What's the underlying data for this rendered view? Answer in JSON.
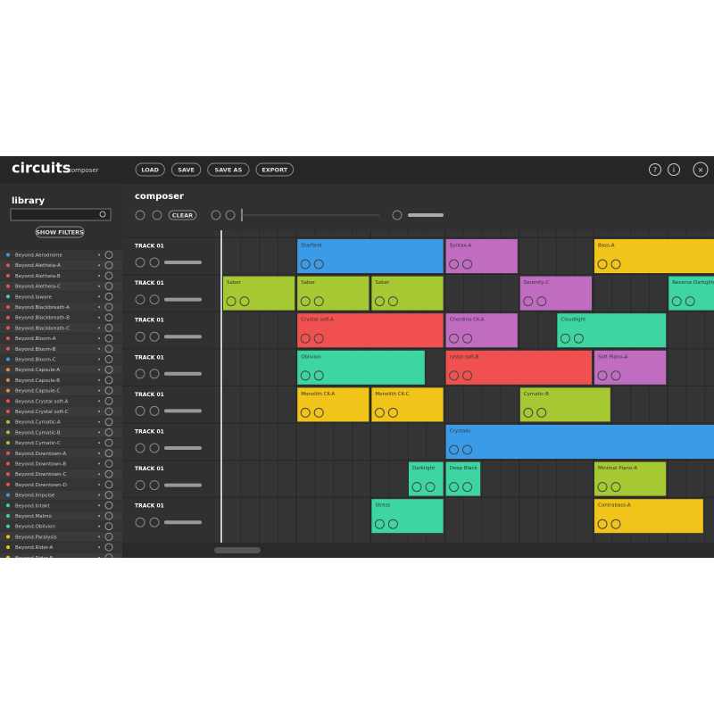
{
  "header": {
    "logo": "circuits",
    "subtitle": "composer",
    "buttons": [
      "LOAD",
      "SAVE",
      "SAVE AS",
      "EXPORT"
    ],
    "icons": [
      "?",
      "i",
      "×"
    ]
  },
  "library": {
    "title": "library",
    "filter_button": "SHOW FILTERS",
    "items": [
      {
        "name": "Beyond.Aerodrome",
        "color": "#3a9be8"
      },
      {
        "name": "Beyond.Aletheia-A",
        "color": "#f05050"
      },
      {
        "name": "Beyond.Aletheia-B",
        "color": "#f05050"
      },
      {
        "name": "Beyond.Aletheia-C",
        "color": "#f05050"
      },
      {
        "name": "Beyond.Iaware",
        "color": "#3dd6a0"
      },
      {
        "name": "Beyond.Blackbreath-A",
        "color": "#f05050"
      },
      {
        "name": "Beyond.Blackbreath-B",
        "color": "#f05050"
      },
      {
        "name": "Beyond.Blackbreath-C",
        "color": "#f05050"
      },
      {
        "name": "Beyond.Bloom-A",
        "color": "#f05050"
      },
      {
        "name": "Beyond.Bloom-B",
        "color": "#f05050"
      },
      {
        "name": "Beyond.Bloom-C",
        "color": "#3a9be8"
      },
      {
        "name": "Beyond.Capsule-A",
        "color": "#f08a3a"
      },
      {
        "name": "Beyond.Capsule-B",
        "color": "#f08a3a"
      },
      {
        "name": "Beyond.Capsule-C",
        "color": "#f08a3a"
      },
      {
        "name": "Beyond.Crystal soft-A",
        "color": "#f05050"
      },
      {
        "name": "Beyond.Crystal soft-C",
        "color": "#f05050"
      },
      {
        "name": "Beyond.Cymatic-A",
        "color": "#a6c832"
      },
      {
        "name": "Beyond.Cymatic-B",
        "color": "#a6c832"
      },
      {
        "name": "Beyond.Cymatic-C",
        "color": "#a6c832"
      },
      {
        "name": "Beyond.Downtown-A",
        "color": "#f05050"
      },
      {
        "name": "Beyond.Downtown-B",
        "color": "#f05050"
      },
      {
        "name": "Beyond.Downtown-C",
        "color": "#f05050"
      },
      {
        "name": "Beyond.Downtown-D",
        "color": "#f05050"
      },
      {
        "name": "Beyond.Impulse",
        "color": "#3a9be8"
      },
      {
        "name": "Beyond.Intakt",
        "color": "#3dd6a0"
      },
      {
        "name": "Beyond.Malmo",
        "color": "#3dd6a0"
      },
      {
        "name": "Beyond.Oblivion",
        "color": "#3dd6a0"
      },
      {
        "name": "Beyond.Paralysis",
        "color": "#f0c419"
      },
      {
        "name": "Beyond.Rider-A",
        "color": "#f0c419"
      },
      {
        "name": "Beyond.Rider-B",
        "color": "#f0c419"
      }
    ]
  },
  "composer": {
    "title": "composer",
    "clear_button": "CLEAR",
    "tracks": [
      {
        "name": "TRACK 01",
        "clips": [
          {
            "name": "Starfield",
            "color": "#3a9be8",
            "start": 4,
            "length": 8
          },
          {
            "name": "Syntax-A",
            "color": "#c06cc0",
            "start": 12,
            "length": 4
          },
          {
            "name": "Bass-A",
            "color": "#f0c419",
            "start": 20,
            "length": 8
          }
        ]
      },
      {
        "name": "TRACK 01",
        "clips": [
          {
            "name": "Saber",
            "color": "#a6c832",
            "start": 0,
            "length": 4
          },
          {
            "name": "Saber",
            "color": "#a6c832",
            "start": 4,
            "length": 4
          },
          {
            "name": "Saber",
            "color": "#a6c832",
            "start": 8,
            "length": 4
          },
          {
            "name": "Serenity-C",
            "color": "#c06cc0",
            "start": 16,
            "length": 4
          },
          {
            "name": "Reverse Darkglitch",
            "color": "#3dd6a0",
            "start": 24,
            "length": 4
          }
        ]
      },
      {
        "name": "TRACK 01",
        "clips": [
          {
            "name": "Crystal soft-A",
            "color": "#f05050",
            "start": 4,
            "length": 8
          },
          {
            "name": "Chordino CK-A",
            "color": "#c06cc0",
            "start": 12,
            "length": 4
          },
          {
            "name": "Cloudlight",
            "color": "#3dd6a0",
            "start": 18,
            "length": 6
          }
        ]
      },
      {
        "name": "TRACK 01",
        "clips": [
          {
            "name": "Oblivion",
            "color": "#3dd6a0",
            "start": 4,
            "length": 7
          },
          {
            "name": "rystal soft-B",
            "color": "#f05050",
            "start": 12,
            "length": 8
          },
          {
            "name": "Soft Piano-A",
            "color": "#c06cc0",
            "start": 20,
            "length": 4
          }
        ]
      },
      {
        "name": "TRACK 01",
        "clips": [
          {
            "name": "Monolith CK-A",
            "color": "#f0c419",
            "start": 4,
            "length": 4
          },
          {
            "name": "Monolith CK-C",
            "color": "#f0c419",
            "start": 8,
            "length": 4
          },
          {
            "name": "Cymatic-B",
            "color": "#a6c832",
            "start": 16,
            "length": 5
          }
        ]
      },
      {
        "name": "TRACK 01",
        "clips": [
          {
            "name": "Crystalis",
            "color": "#3a9be8",
            "start": 12,
            "length": 16
          }
        ]
      },
      {
        "name": "TRACK 01",
        "clips": [
          {
            "name": "Darklight",
            "color": "#3dd6a0",
            "start": 10,
            "length": 2
          },
          {
            "name": "Deep Black",
            "color": "#3dd6a0",
            "start": 12,
            "length": 2
          },
          {
            "name": "Minimal Piano-A",
            "color": "#a6c832",
            "start": 20,
            "length": 4
          }
        ]
      },
      {
        "name": "TRACK 01",
        "clips": [
          {
            "name": "Stress",
            "color": "#3dd6a0",
            "start": 8,
            "length": 4
          },
          {
            "name": "Contrabass-A",
            "color": "#f0c419",
            "start": 20,
            "length": 6
          }
        ]
      }
    ]
  }
}
